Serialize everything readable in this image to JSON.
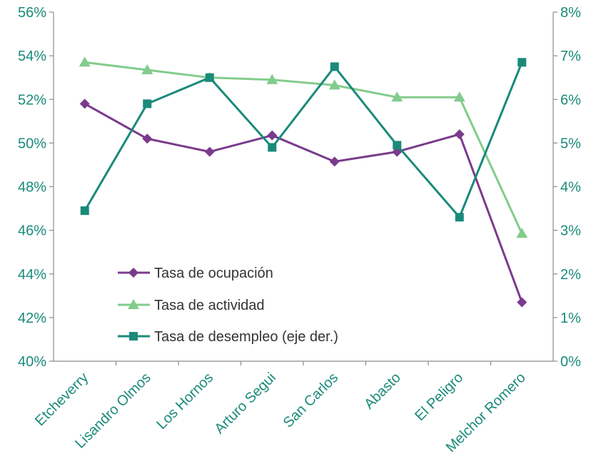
{
  "chart_data": {
    "type": "line",
    "categories": [
      "Etcheverry",
      "Lisandro Olmos",
      "Los Hornos",
      "Arturo Segui",
      "San Carlos",
      "Abasto",
      "El Peligro",
      "Melchor Romero"
    ],
    "series": [
      {
        "name": "Tasa de ocupación",
        "axis": "left",
        "color": "#7b3b8c",
        "marker": "diamond",
        "values": [
          51.8,
          50.2,
          49.6,
          50.35,
          49.15,
          49.6,
          50.4,
          42.7
        ]
      },
      {
        "name": "Tasa de actividad",
        "axis": "left",
        "color": "#82cc8c",
        "marker": "triangle",
        "values": [
          53.7,
          53.35,
          53.0,
          52.9,
          52.65,
          52.1,
          52.1,
          45.85
        ]
      },
      {
        "name": "Tasa de desempleo (eje der.)",
        "axis": "right",
        "color": "#1a8a7a",
        "marker": "square",
        "values": [
          3.45,
          5.9,
          6.5,
          4.9,
          6.75,
          4.95,
          3.3,
          6.85
        ]
      }
    ],
    "y_left": {
      "range": [
        40,
        56
      ],
      "ticks": [
        "40%",
        "42%",
        "44%",
        "46%",
        "48%",
        "50%",
        "52%",
        "54%",
        "56%"
      ]
    },
    "y_right": {
      "range": [
        0,
        8
      ],
      "ticks": [
        "0%",
        "1%",
        "2%",
        "3%",
        "4%",
        "5%",
        "6%",
        "7%",
        "8%"
      ]
    },
    "grid": false,
    "legend_position": "inside-bottom-left"
  }
}
